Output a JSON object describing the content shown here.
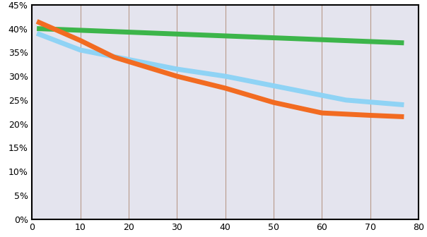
{
  "chart_data": {
    "type": "line",
    "xlim": [
      0,
      80
    ],
    "xticks": [
      0,
      10,
      20,
      30,
      40,
      50,
      60,
      70,
      80
    ],
    "ylim": [
      0,
      45
    ],
    "yticks": [
      {
        "value": 0,
        "label": "0%"
      },
      {
        "value": 5,
        "label": "5%"
      },
      {
        "value": 10,
        "label": "10%"
      },
      {
        "value": 15,
        "label": "15%"
      },
      {
        "value": 20,
        "label": "20%"
      },
      {
        "value": 25,
        "label": "25%"
      },
      {
        "value": 30,
        "label": "30%"
      },
      {
        "value": 35,
        "label": "35%"
      },
      {
        "value": 40,
        "label": "40%"
      },
      {
        "value": 45,
        "label": "45%"
      }
    ],
    "grid": "x",
    "series": [
      {
        "color": "#3cb54a",
        "x": [
          1,
          77
        ],
        "values": [
          40,
          37
        ]
      },
      {
        "color": "#8fd3f5",
        "x": [
          1,
          10,
          15,
          30,
          40,
          50,
          60,
          65,
          77
        ],
        "values": [
          39,
          35.5,
          34.5,
          31.5,
          30,
          28,
          26,
          25,
          24
        ]
      },
      {
        "color": "#f26b21",
        "x": [
          1,
          10,
          17,
          30,
          40,
          50,
          60,
          70,
          77
        ],
        "values": [
          41.5,
          37.5,
          34,
          30,
          27.5,
          24.5,
          22.3,
          21.8,
          21.5
        ]
      }
    ]
  }
}
